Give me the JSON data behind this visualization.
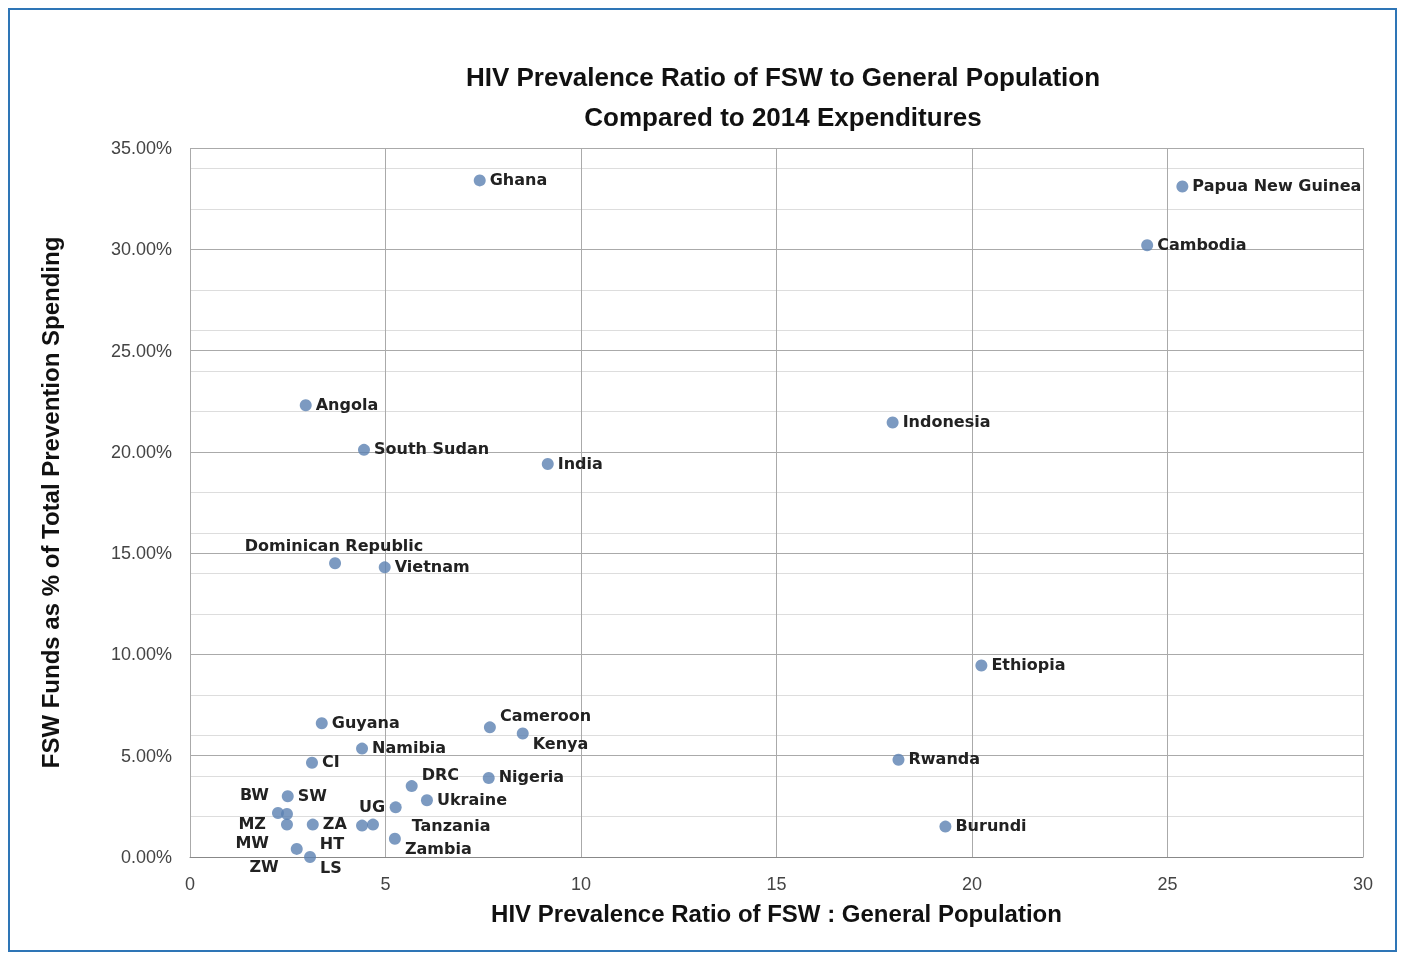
{
  "chart_data": {
    "type": "scatter",
    "title": "HIV Prevalence Ratio of FSW to General Population\nCompared to 2014 Expenditures",
    "xlabel": "HIV Prevalence Ratio of FSW : General Population",
    "ylabel": "FSW Funds as % of Total Prevention Spending",
    "x": [
      7.41,
      25.38,
      24.48,
      2.96,
      17.97,
      4.45,
      9.15,
      3.71,
      4.98,
      20.24,
      3.37,
      7.67,
      8.51,
      4.4,
      18.12,
      3.12,
      7.64,
      5.67,
      2.5,
      6.06,
      5.26,
      2.48,
      2.25,
      2.48,
      3.14,
      4.68,
      4.4,
      19.32,
      5.24,
      2.73,
      3.07
    ],
    "values": [
      33.4,
      33.1,
      30.2,
      22.3,
      21.45,
      20.1,
      19.4,
      14.5,
      14.3,
      9.45,
      6.6,
      6.4,
      6.1,
      5.35,
      4.8,
      4.65,
      3.9,
      3.5,
      3.0,
      2.8,
      2.45,
      2.12,
      2.17,
      1.6,
      1.6,
      1.6,
      1.55,
      1.5,
      0.9,
      0.4,
      0.0
    ],
    "color": "#5b81b1",
    "marker": "circle",
    "grid": true,
    "xlim": [
      0,
      30
    ],
    "xticks": [
      0,
      5,
      10,
      15,
      20,
      25,
      30
    ],
    "ylim": [
      0,
      35
    ],
    "yticks": [
      {
        "value": 0,
        "label": "0.00%"
      },
      {
        "value": 5,
        "label": "5.00%"
      },
      {
        "value": 10,
        "label": "10.00%"
      },
      {
        "value": 15,
        "label": "15.00%"
      },
      {
        "value": 20,
        "label": "20.00%"
      },
      {
        "value": 25,
        "label": "25.00%"
      },
      {
        "value": 30,
        "label": "30.00%"
      },
      {
        "value": 35,
        "label": "35.00%"
      }
    ],
    "annotations": [
      {
        "text": "Ghana",
        "x": 7.41,
        "y": 33.4
      },
      {
        "text": "Papua New Guinea",
        "x": 25.38,
        "y": 33.1
      },
      {
        "text": "Cambodia",
        "x": 24.48,
        "y": 30.2
      },
      {
        "text": "Angola",
        "x": 2.96,
        "y": 22.3
      },
      {
        "text": "Indonesia",
        "x": 17.97,
        "y": 21.45
      },
      {
        "text": "South Sudan",
        "x": 4.45,
        "y": 20.1
      },
      {
        "text": "India",
        "x": 9.15,
        "y": 19.4
      },
      {
        "text": "Dominican Republic",
        "x": 3.71,
        "y": 14.5
      },
      {
        "text": "Vietnam",
        "x": 4.98,
        "y": 14.3
      },
      {
        "text": "Ethiopia",
        "x": 20.24,
        "y": 9.45
      },
      {
        "text": "Guyana",
        "x": 3.37,
        "y": 6.6
      },
      {
        "text": "Cameroon",
        "x": 7.67,
        "y": 6.4
      },
      {
        "text": "Kenya",
        "x": 8.51,
        "y": 6.1
      },
      {
        "text": "Namibia",
        "x": 4.4,
        "y": 5.35
      },
      {
        "text": "Rwanda",
        "x": 18.12,
        "y": 4.8
      },
      {
        "text": "CI",
        "x": 3.12,
        "y": 4.65
      },
      {
        "text": "Nigeria",
        "x": 7.64,
        "y": 3.9
      },
      {
        "text": "DRC",
        "x": 5.67,
        "y": 3.5
      },
      {
        "text": "SW",
        "x": 2.5,
        "y": 3.0
      },
      {
        "text": "Ukraine",
        "x": 6.06,
        "y": 2.8
      },
      {
        "text": "Tanzania",
        "x": 5.26,
        "y": 2.45
      },
      {
        "text": "BW",
        "x": 2.48,
        "y": 2.12
      },
      {
        "text": "MZ",
        "x": 2.25,
        "y": 2.17
      },
      {
        "text": "MW",
        "x": 2.48,
        "y": 1.6
      },
      {
        "text": "ZA",
        "x": 3.14,
        "y": 1.6
      },
      {
        "text": "UG",
        "x": 4.68,
        "y": 1.6
      },
      {
        "text": "HT",
        "x": 4.4,
        "y": 1.55
      },
      {
        "text": "Burundi",
        "x": 19.32,
        "y": 1.5
      },
      {
        "text": "Zambia",
        "x": 5.24,
        "y": 0.9
      },
      {
        "text": "ZW",
        "x": 2.73,
        "y": 0.4
      },
      {
        "text": "LS",
        "x": 3.07,
        "y": 0.0
      }
    ]
  }
}
